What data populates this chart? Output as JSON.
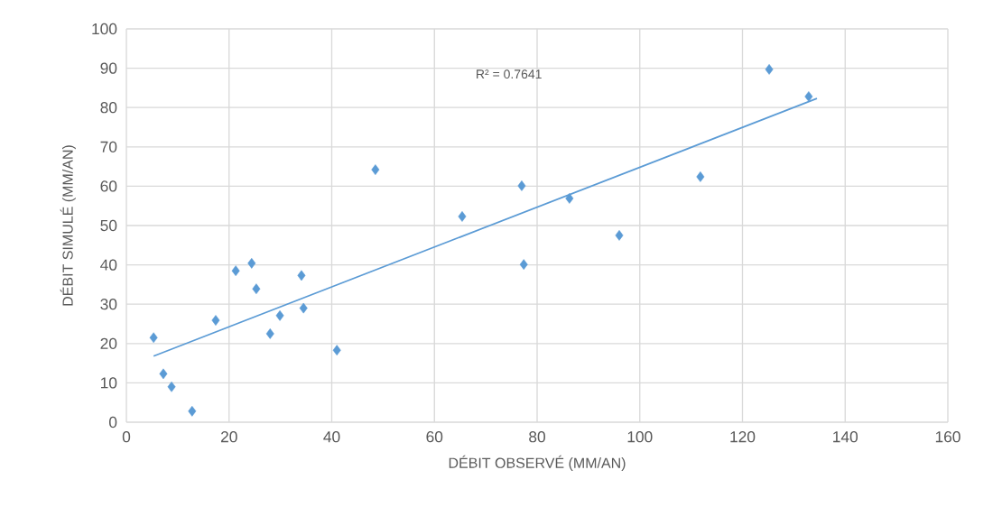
{
  "chart_data": {
    "type": "scatter",
    "xlabel": "DÉBIT OBSERVÉ (MM/AN)",
    "ylabel": "DÉBIT SIMULÉ (MM/AN)",
    "annotations": [
      "R² = 0.7641"
    ],
    "xlim": [
      0,
      160
    ],
    "ylim": [
      0,
      100
    ],
    "xticks": [
      0,
      20,
      40,
      60,
      80,
      100,
      120,
      140,
      160
    ],
    "yticks": [
      0,
      10,
      20,
      30,
      40,
      50,
      60,
      70,
      80,
      90,
      100
    ],
    "grid": true,
    "marker": "diamond",
    "series": [
      {
        "color": "#5b9bd5",
        "x": [
          5.3,
          7.2,
          8.8,
          12.8,
          17.4,
          21.3,
          24.4,
          25.3,
          28.0,
          29.9,
          34.1,
          34.5,
          41.0,
          48.5,
          65.4,
          77.0,
          77.4,
          86.3,
          96.0,
          111.8,
          125.2,
          132.9
        ],
        "values": [
          21.5,
          12.3,
          9.0,
          2.8,
          25.9,
          38.5,
          40.4,
          33.9,
          22.5,
          27.1,
          37.3,
          29.0,
          18.3,
          64.2,
          52.3,
          60.1,
          40.1,
          56.9,
          47.5,
          62.4,
          89.7,
          82.8
        ]
      },
      {
        "type": "line",
        "color": "#5b9bd5",
        "line_style": "solid",
        "marker": "none",
        "x": [
          5.3,
          134.5
        ],
        "values": [
          16.8,
          82.3
        ]
      }
    ]
  }
}
